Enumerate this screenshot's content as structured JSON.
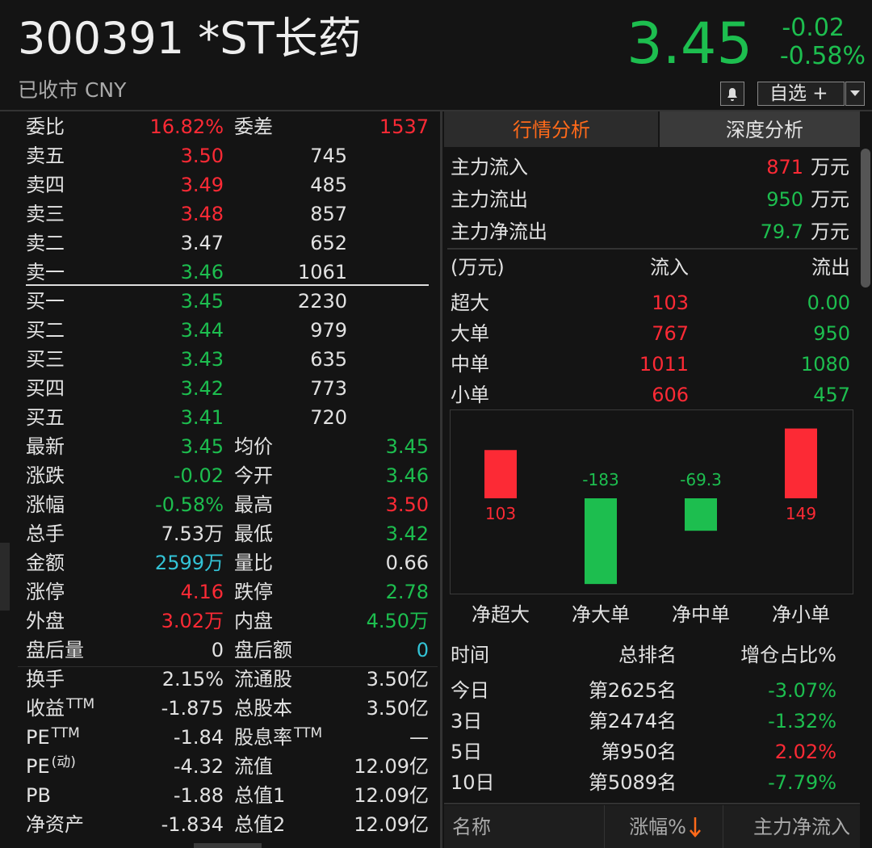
{
  "header": {
    "code_name": "300391 *ST长药",
    "status": "已收市 CNY",
    "price": "3.45",
    "change": "-0.02",
    "change_pct": "-0.58%",
    "watchlist": "自选 +"
  },
  "left": {
    "rows": [
      [
        "委比",
        "16.82%",
        "委差",
        "1537"
      ],
      [
        "卖五",
        "3.50",
        "745"
      ],
      [
        "卖四",
        "3.49",
        "485"
      ],
      [
        "卖三",
        "3.48",
        "857"
      ],
      [
        "卖二",
        "3.47",
        "652"
      ],
      [
        "卖一",
        "3.46",
        "1061"
      ],
      [
        "买一",
        "3.45",
        "2230"
      ],
      [
        "买二",
        "3.44",
        "979"
      ],
      [
        "买三",
        "3.43",
        "635"
      ],
      [
        "买四",
        "3.42",
        "773"
      ],
      [
        "买五",
        "3.41",
        "720"
      ],
      [
        "最新",
        "3.45",
        "均价",
        "3.45"
      ],
      [
        "涨跌",
        "-0.02",
        "今开",
        "3.46"
      ],
      [
        "涨幅",
        "-0.58%",
        "最高",
        "3.50"
      ],
      [
        "总手",
        "7.53万",
        "最低",
        "3.42"
      ],
      [
        "金额",
        "2599万",
        "量比",
        "0.66"
      ],
      [
        "涨停",
        "4.16",
        "跌停",
        "2.78"
      ],
      [
        "外盘",
        "3.02万",
        "内盘",
        "4.50万"
      ],
      [
        "盘后量",
        "0",
        "盘后额",
        "0"
      ],
      [
        "换手",
        "2.15%",
        "流通股",
        "3.50亿"
      ],
      [
        {
          "text": "收益",
          "sup": "TTM"
        },
        "-1.875",
        "总股本",
        "3.50亿"
      ],
      [
        {
          "text": "PE",
          "sup": "TTM"
        },
        "-1.84",
        {
          "text": "股息率",
          "sup": "TTM"
        },
        "—"
      ],
      [
        {
          "text": "PE",
          "sup": "(动)"
        },
        "-4.32",
        "流值",
        "12.09亿"
      ],
      [
        "PB",
        "-1.88",
        "总值1",
        "12.09亿"
      ],
      [
        "净资产",
        "-1.834",
        "总值2",
        "12.09亿"
      ]
    ]
  },
  "right": {
    "tabs": [
      "行情分析",
      "深度分析"
    ],
    "summary": [
      [
        "主力流入",
        "871",
        "万元"
      ],
      [
        "主力流出",
        "950",
        "万元"
      ],
      [
        "主力净流出",
        "79.7",
        "万元"
      ]
    ],
    "flow_header": [
      "(万元)",
      "流入",
      "流出"
    ],
    "flow_rows": [
      [
        "超大",
        "103",
        "0.00"
      ],
      [
        "大单",
        "767",
        "950"
      ],
      [
        "中单",
        "1011",
        "1080"
      ],
      [
        "小单",
        "606",
        "457"
      ]
    ],
    "rank_header": [
      "时间",
      "总排名",
      "增仓占比%"
    ],
    "rank_rows": [
      [
        "今日",
        "第2625名",
        "-3.07%"
      ],
      [
        "3日",
        "第2474名",
        "-1.32%"
      ],
      [
        "5日",
        "第950名",
        "2.02%"
      ],
      [
        "10日",
        "第5089名",
        "-7.79%"
      ]
    ],
    "list_header": [
      "名称",
      "涨幅%",
      "主力净流入"
    ]
  },
  "net_flow_chart": {
    "type": "bar",
    "categories": [
      "净超大",
      "净大单",
      "净中单",
      "净小单"
    ],
    "values": [
      103,
      -183,
      -69.3,
      149
    ],
    "positive_color": "#fc2a35",
    "negative_color": "#1dbe4f"
  }
}
